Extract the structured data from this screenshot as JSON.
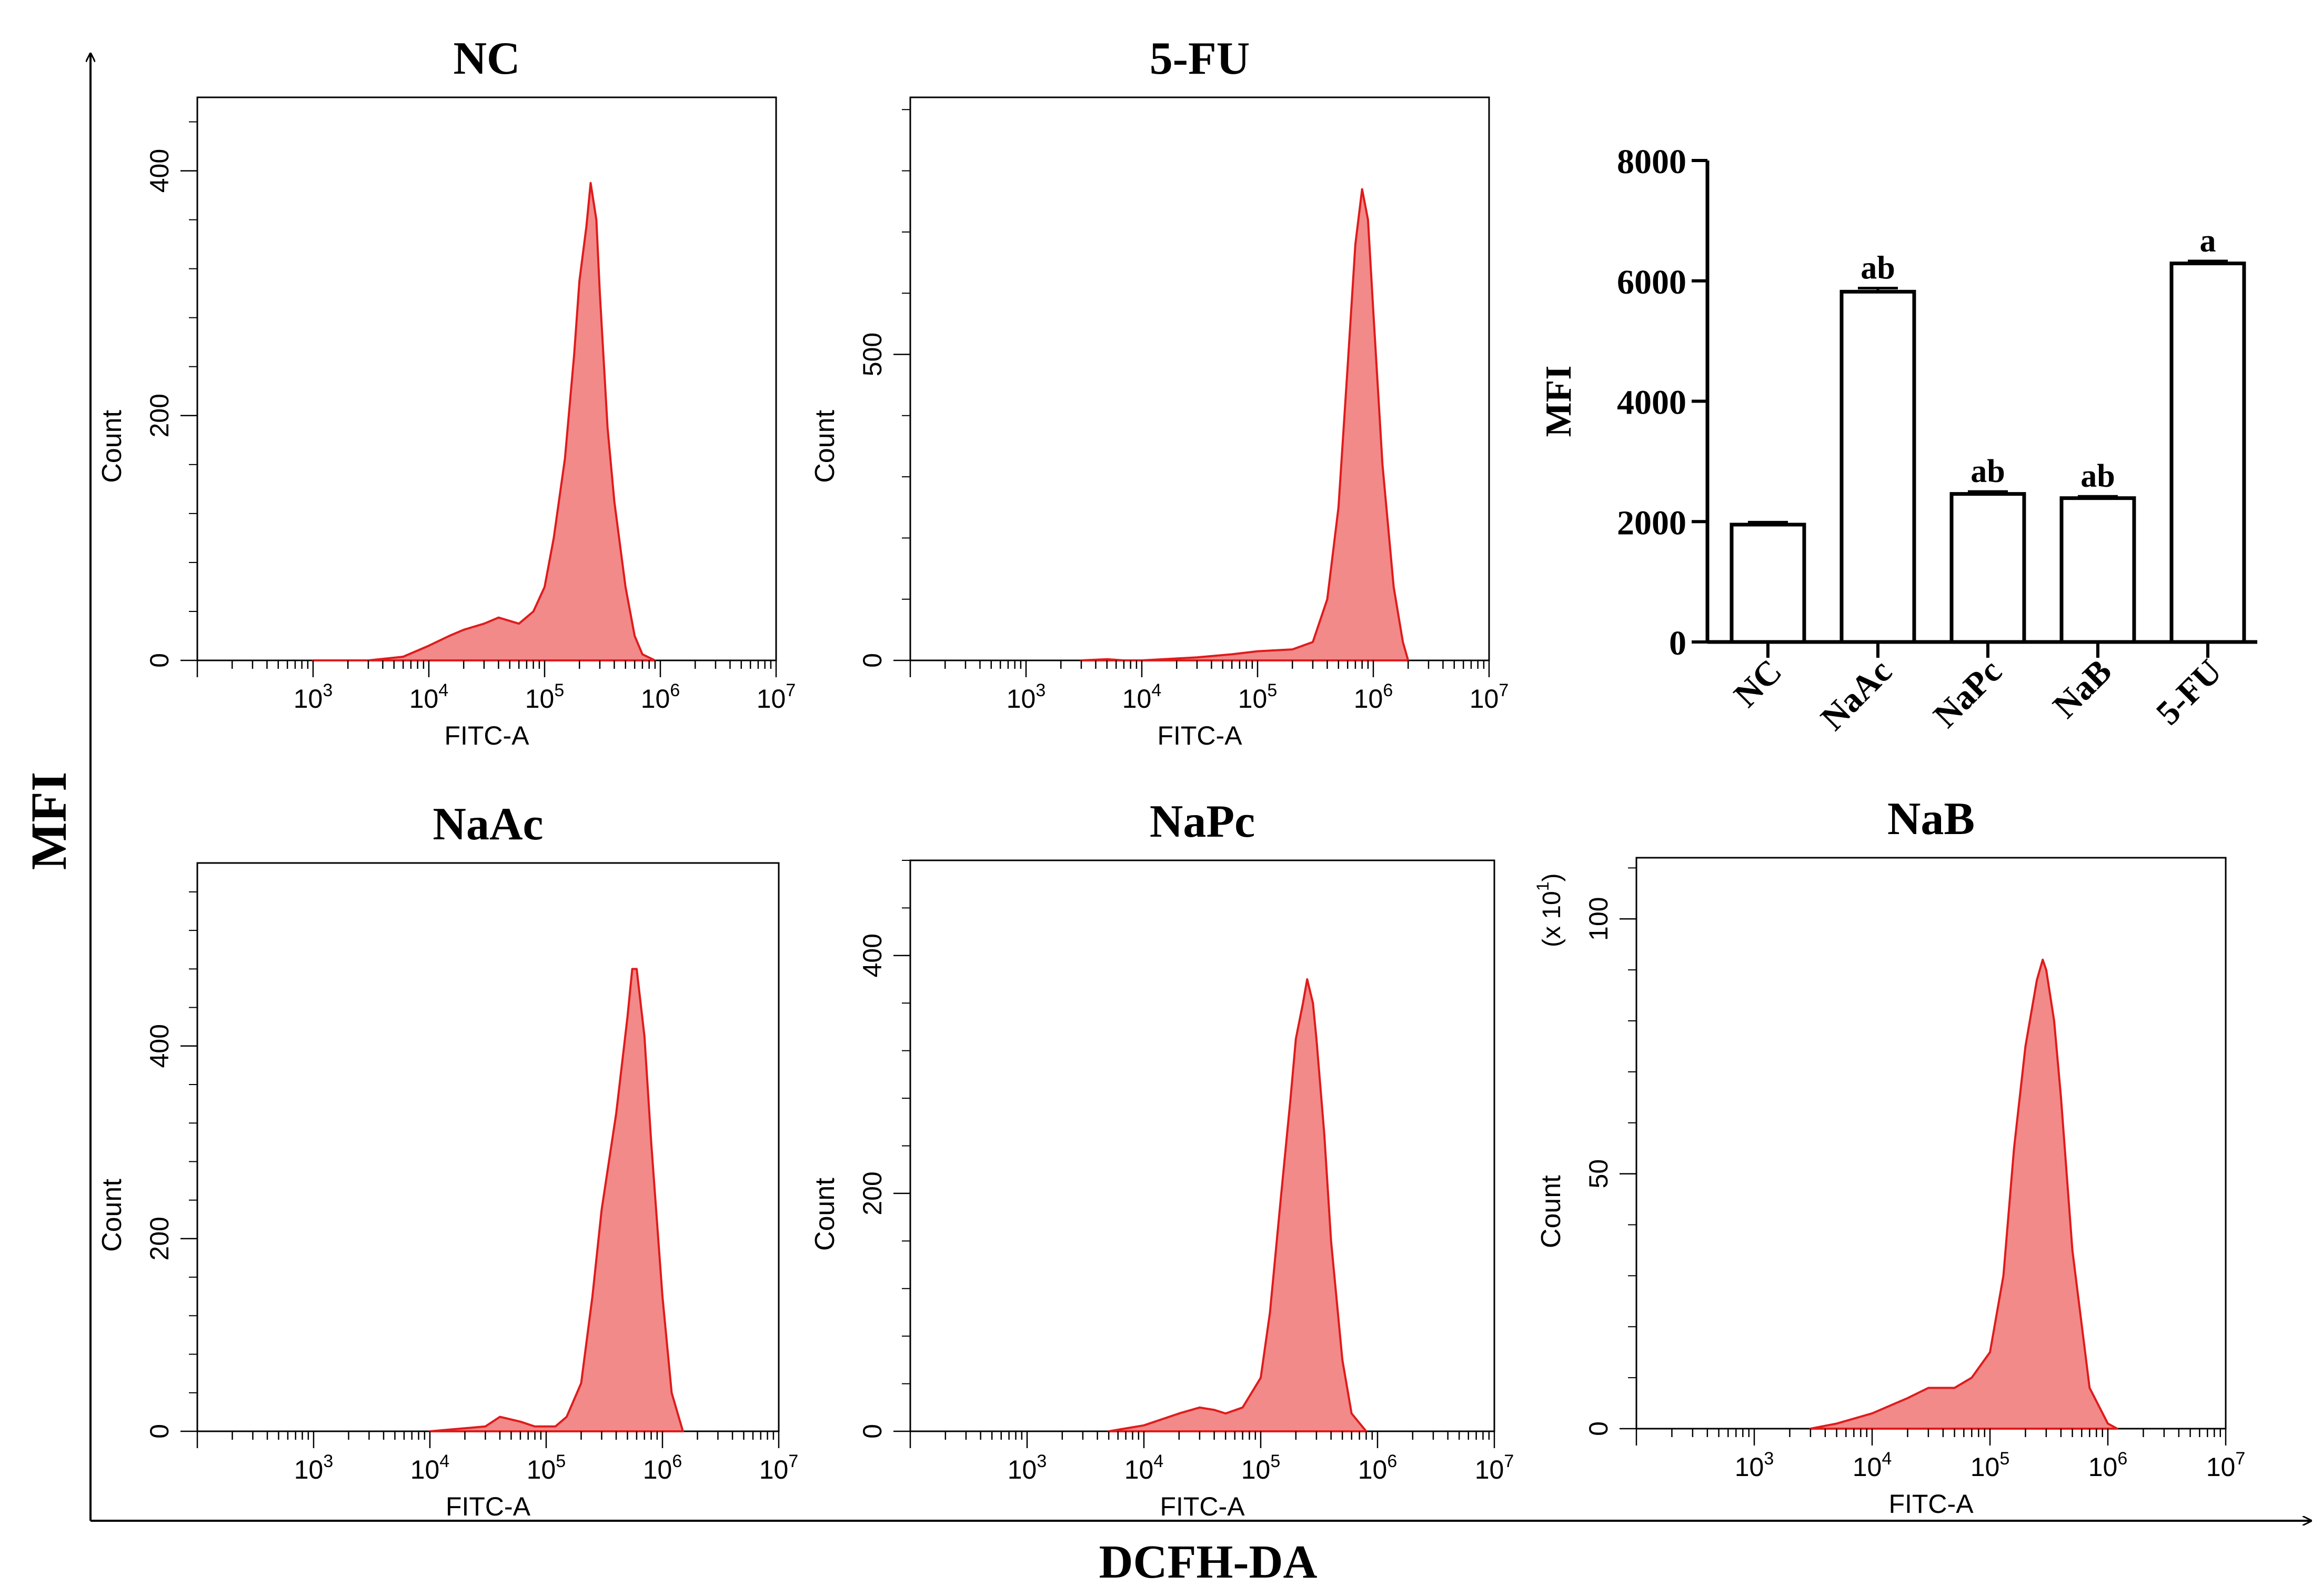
{
  "figure": {
    "y_axis_label": "MFI",
    "x_axis_label": "DCFH-DA"
  },
  "colors": {
    "histogram_fill": "#F28A8A",
    "histogram_line": "#E01B1B",
    "axis": "#000000",
    "bar_fill": "#FFFFFF"
  },
  "chart_data": [
    {
      "type": "area",
      "panel": "NC",
      "title": "NC",
      "xlabel": "FITC-A",
      "ylabel": "Count",
      "x_scale": "log10",
      "xlim": [
        100,
        10000000
      ],
      "x_ticks": [
        1000,
        10000,
        100000,
        1000000,
        10000000
      ],
      "x_tick_labels": [
        [
          "10",
          "3"
        ],
        [
          "10",
          "4"
        ],
        [
          "10",
          "5"
        ],
        [
          "10",
          "6"
        ],
        [
          "10",
          "7"
        ]
      ],
      "ylim": [
        0,
        460
      ],
      "y_ticks": [
        0,
        200,
        400
      ],
      "y_tick_labels": [
        "0",
        "200",
        "400"
      ],
      "x": [
        1000,
        3000,
        6000,
        10000,
        15000,
        20000,
        30000,
        40000,
        60000,
        80000,
        100000,
        120000,
        150000,
        180000,
        200000,
        230000,
        250000,
        280000,
        300000,
        350000,
        400000,
        500000,
        600000,
        700000,
        900000
      ],
      "y": [
        0,
        0,
        3,
        12,
        20,
        25,
        30,
        35,
        30,
        40,
        60,
        100,
        165,
        250,
        310,
        355,
        390,
        360,
        300,
        190,
        130,
        60,
        20,
        5,
        0
      ]
    },
    {
      "type": "area",
      "panel": "5-FU",
      "title": "5-FU",
      "xlabel": "FITC-A",
      "ylabel": "Count",
      "x_scale": "log10",
      "xlim": [
        100,
        10000000
      ],
      "x_ticks": [
        1000,
        10000,
        100000,
        1000000,
        10000000
      ],
      "x_tick_labels": [
        [
          "10",
          "3"
        ],
        [
          "10",
          "4"
        ],
        [
          "10",
          "5"
        ],
        [
          "10",
          "6"
        ],
        [
          "10",
          "7"
        ]
      ],
      "ylim": [
        0,
        920
      ],
      "y_ticks": [
        0,
        500
      ],
      "y_tick_labels": [
        "0",
        "500"
      ],
      "x": [
        3000,
        5000,
        7000,
        10000,
        30000,
        60000,
        100000,
        200000,
        300000,
        400000,
        500000,
        600000,
        700000,
        800000,
        900000,
        1000000,
        1200000,
        1500000,
        1800000,
        2000000
      ],
      "y": [
        0,
        2,
        0,
        0,
        5,
        10,
        15,
        18,
        30,
        100,
        250,
        480,
        680,
        770,
        720,
        570,
        320,
        120,
        30,
        0
      ]
    },
    {
      "type": "area",
      "panel": "NaAc",
      "title": "NaAc",
      "xlabel": "FITC-A",
      "ylabel": "Count",
      "x_scale": "log10",
      "xlim": [
        100,
        10000000
      ],
      "x_ticks": [
        1000,
        10000,
        100000,
        1000000,
        10000000
      ],
      "x_tick_labels": [
        [
          "10",
          "3"
        ],
        [
          "10",
          "4"
        ],
        [
          "10",
          "5"
        ],
        [
          "10",
          "6"
        ],
        [
          "10",
          "7"
        ]
      ],
      "ylim": [
        0,
        590
      ],
      "y_ticks": [
        0,
        200,
        400
      ],
      "y_tick_labels": [
        "0",
        "200",
        "400"
      ],
      "x": [
        10000,
        30000,
        40000,
        60000,
        80000,
        120000,
        150000,
        200000,
        250000,
        300000,
        400000,
        500000,
        550000,
        600000,
        700000,
        800000,
        1000000,
        1200000,
        1500000
      ],
      "y": [
        0,
        5,
        15,
        10,
        5,
        5,
        15,
        50,
        140,
        230,
        330,
        430,
        480,
        480,
        410,
        300,
        140,
        40,
        0
      ]
    },
    {
      "type": "area",
      "panel": "NaPc",
      "title": "NaPc",
      "xlabel": "FITC-A",
      "ylabel": "Count",
      "x_scale": "log10",
      "xlim": [
        100,
        10000000
      ],
      "x_ticks": [
        1000,
        10000,
        100000,
        1000000,
        10000000
      ],
      "x_tick_labels": [
        [
          "10",
          "3"
        ],
        [
          "10",
          "4"
        ],
        [
          "10",
          "5"
        ],
        [
          "10",
          "6"
        ],
        [
          "10",
          "7"
        ]
      ],
      "ylim": [
        0,
        480
      ],
      "y_ticks": [
        0,
        200,
        400
      ],
      "y_tick_labels": [
        "0",
        "200",
        "400"
      ],
      "x": [
        5000,
        10000,
        20000,
        30000,
        40000,
        50000,
        70000,
        100000,
        120000,
        150000,
        180000,
        200000,
        230000,
        250000,
        280000,
        300000,
        350000,
        400000,
        500000,
        600000,
        800000
      ],
      "y": [
        0,
        5,
        15,
        20,
        18,
        15,
        20,
        45,
        100,
        200,
        280,
        330,
        360,
        380,
        360,
        330,
        250,
        160,
        60,
        15,
        0
      ]
    },
    {
      "type": "area",
      "panel": "NaB",
      "title": "NaB",
      "xlabel": "FITC-A",
      "ylabel": "Count",
      "y_scale_label": "(x 10",
      "y_scale_exponent": "1",
      "x_scale": "log10",
      "xlim": [
        100,
        10000000
      ],
      "x_ticks": [
        1000,
        10000,
        100000,
        1000000,
        10000000
      ],
      "x_tick_labels": [
        [
          "10",
          "3"
        ],
        [
          "10",
          "4"
        ],
        [
          "10",
          "5"
        ],
        [
          "10",
          "6"
        ],
        [
          "10",
          "7"
        ]
      ],
      "ylim": [
        0,
        112
      ],
      "y_ticks": [
        0,
        50,
        100
      ],
      "y_tick_labels": [
        "0",
        "50",
        "100"
      ],
      "x": [
        3000,
        5000,
        10000,
        20000,
        30000,
        50000,
        70000,
        100000,
        130000,
        160000,
        200000,
        250000,
        280000,
        300000,
        350000,
        400000,
        500000,
        700000,
        1000000,
        1200000
      ],
      "y": [
        0,
        1,
        3,
        6,
        8,
        8,
        10,
        15,
        30,
        55,
        75,
        88,
        92,
        90,
        80,
        65,
        35,
        8,
        1,
        0
      ]
    },
    {
      "type": "bar",
      "title": "",
      "xlabel": "",
      "ylabel": "MFI",
      "categories": [
        "NC",
        "NaAc",
        "NaPc",
        "NaB",
        "5-FU"
      ],
      "values": [
        1950,
        5820,
        2460,
        2390,
        6290
      ],
      "errors": [
        40,
        60,
        40,
        30,
        40
      ],
      "annotations": [
        "",
        "ab",
        "ab",
        "ab",
        "a"
      ],
      "ylim": [
        0,
        8000
      ],
      "y_ticks": [
        0,
        2000,
        4000,
        6000,
        8000
      ],
      "y_tick_labels": [
        "0",
        "2000",
        "4000",
        "6000",
        "8000"
      ]
    }
  ]
}
